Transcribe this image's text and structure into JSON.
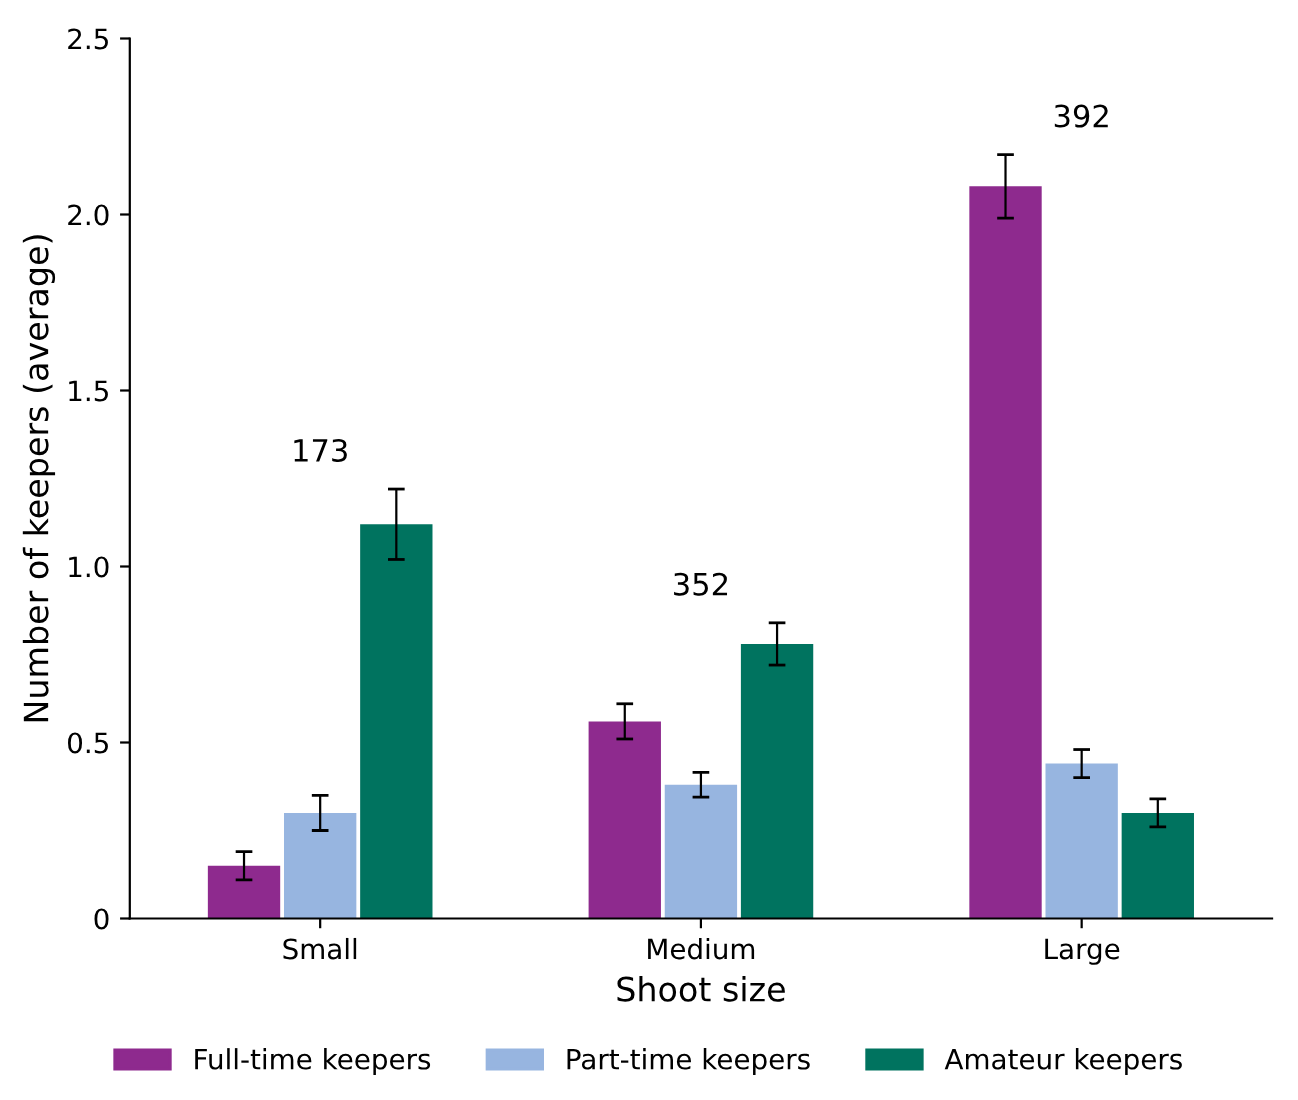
{
  "chart_data": {
    "type": "bar",
    "xlabel": "Shoot size",
    "ylabel": "Number of keepers (average)",
    "categories": [
      "Small",
      "Medium",
      "Large"
    ],
    "series": [
      {
        "name": "Full-time keepers",
        "color": "#8e2a8e",
        "values": [
          0.15,
          0.56,
          2.08
        ],
        "errors": [
          0.04,
          0.05,
          0.09
        ]
      },
      {
        "name": "Part-time keepers",
        "color": "#97b5e0",
        "values": [
          0.3,
          0.38,
          0.44
        ],
        "errors": [
          0.05,
          0.035,
          0.04
        ]
      },
      {
        "name": "Amateur keepers",
        "color": "#00735f",
        "values": [
          1.12,
          0.78,
          0.3
        ],
        "errors": [
          0.1,
          0.06,
          0.04
        ]
      }
    ],
    "ylim": [
      0,
      2.5
    ],
    "yticks": [
      0,
      0.5,
      {
        "value": 1,
        "label": "1.0"
      },
      1.5,
      {
        "value": 2,
        "label": "2.0"
      },
      2.5
    ],
    "annotations": [
      "173",
      "352",
      "392"
    ],
    "legend": "bottom",
    "grid": false
  }
}
